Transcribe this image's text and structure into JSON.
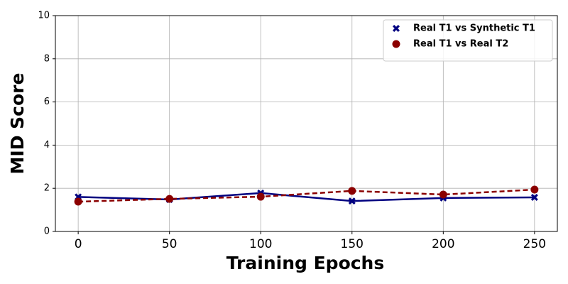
{
  "chart_data": {
    "type": "line",
    "xlabel": "Training Epochs",
    "ylabel": "MID Score",
    "x": [
      0,
      50,
      100,
      150,
      200,
      250
    ],
    "series": [
      {
        "name": "Real T1 vs Synthetic T1",
        "color": "#000080",
        "marker": "X",
        "linestyle": "solid",
        "values": [
          1.6,
          1.48,
          1.78,
          1.41,
          1.55,
          1.58
        ]
      },
      {
        "name": "Real T1 vs Real T2",
        "color": "#8b0000",
        "marker": "o",
        "linestyle": "dashed",
        "values": [
          1.38,
          1.51,
          1.61,
          1.88,
          1.71,
          1.94
        ]
      }
    ],
    "xlim": [
      -12.5,
      262.5
    ],
    "xticks": [
      0,
      50,
      100,
      150,
      200,
      250
    ],
    "ylim": [
      0,
      10
    ],
    "yticks": [
      0,
      2,
      4,
      6,
      8,
      10
    ],
    "grid": true,
    "legend": "upper right"
  }
}
